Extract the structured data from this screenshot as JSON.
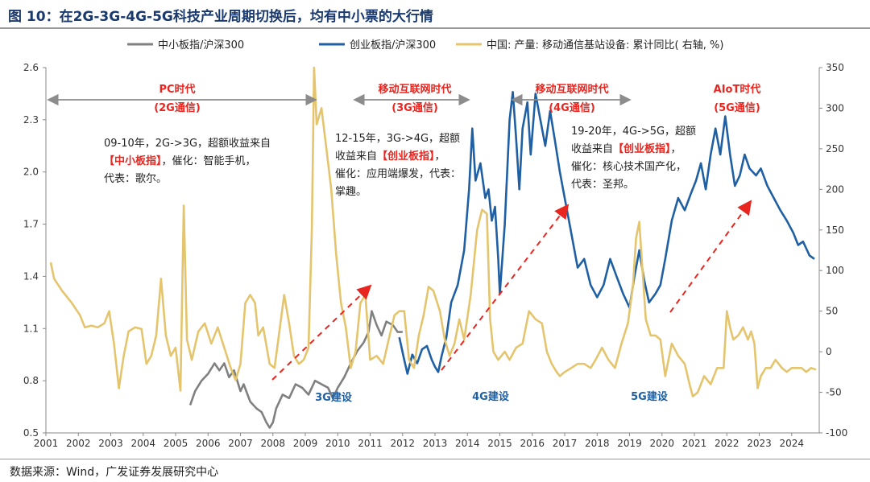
{
  "header": {
    "title": "图 10：在2G-3G-4G-5G科技产业周期切换后，均有中小票的大行情"
  },
  "footer": {
    "source": "数据来源：Wind，广发证券发展研究中心"
  },
  "colors": {
    "gray": "#808080",
    "blue": "#1f5fa3",
    "gold": "#e4c56d",
    "red": "#e8251f",
    "arrow_gray": "#8c8c8c"
  },
  "chart_data": {
    "type": "line",
    "x_range": [
      2001,
      2024.85
    ],
    "x_ticks": [
      "2001",
      "2002",
      "2003",
      "2004",
      "2005",
      "2006",
      "2007",
      "2008",
      "2009",
      "2010",
      "2011",
      "2012",
      "2013",
      "2014",
      "2015",
      "2016",
      "2017",
      "2018",
      "2019",
      "2020",
      "2021",
      "2022",
      "2023",
      "2024"
    ],
    "y_left": {
      "range": [
        0.5,
        2.6
      ],
      "ticks": [
        "0.5",
        "0.8",
        "1.1",
        "1.4",
        "1.7",
        "2.0",
        "2.3",
        "2.6"
      ]
    },
    "y_right": {
      "range": [
        -100,
        350
      ],
      "ticks": [
        "-100",
        "-50",
        "0",
        "50",
        "100",
        "150",
        "200",
        "250",
        "300",
        "350"
      ]
    },
    "legend": [
      "中小板指/沪深300",
      "创业板指/沪深300",
      "中国: 产量: 移动通信基站设备: 累计同比( 右轴, %)"
    ],
    "series": [
      {
        "name": "中小板指/沪深300",
        "axis": "left",
        "points": [
          [
            2005.45,
            0.66
          ],
          [
            2005.6,
            0.74
          ],
          [
            2005.8,
            0.8
          ],
          [
            2006.0,
            0.84
          ],
          [
            2006.2,
            0.9
          ],
          [
            2006.35,
            0.86
          ],
          [
            2006.5,
            0.9
          ],
          [
            2006.65,
            0.82
          ],
          [
            2006.8,
            0.86
          ],
          [
            2007.0,
            0.74
          ],
          [
            2007.1,
            0.78
          ],
          [
            2007.3,
            0.68
          ],
          [
            2007.5,
            0.64
          ],
          [
            2007.65,
            0.62
          ],
          [
            2007.8,
            0.56
          ],
          [
            2007.9,
            0.53
          ],
          [
            2008.0,
            0.56
          ],
          [
            2008.1,
            0.64
          ],
          [
            2008.3,
            0.72
          ],
          [
            2008.5,
            0.7
          ],
          [
            2008.7,
            0.78
          ],
          [
            2008.9,
            0.76
          ],
          [
            2009.1,
            0.72
          ],
          [
            2009.3,
            0.8
          ],
          [
            2009.5,
            0.78
          ],
          [
            2009.7,
            0.76
          ],
          [
            2009.85,
            0.7
          ],
          [
            2010.0,
            0.76
          ],
          [
            2010.2,
            0.82
          ],
          [
            2010.4,
            0.9
          ],
          [
            2010.6,
            0.97
          ],
          [
            2010.8,
            1.02
          ],
          [
            2010.95,
            1.08
          ],
          [
            2011.05,
            1.2
          ],
          [
            2011.2,
            1.12
          ],
          [
            2011.35,
            1.06
          ],
          [
            2011.5,
            1.14
          ],
          [
            2011.7,
            1.12
          ],
          [
            2011.85,
            1.08
          ],
          [
            2012.0,
            1.08
          ]
        ]
      },
      {
        "name": "创业板指/沪深300",
        "axis": "left",
        "points": [
          [
            2011.9,
            1.05
          ],
          [
            2012.05,
            0.92
          ],
          [
            2012.15,
            0.84
          ],
          [
            2012.3,
            0.95
          ],
          [
            2012.45,
            0.9
          ],
          [
            2012.6,
            0.98
          ],
          [
            2012.75,
            1.0
          ],
          [
            2012.9,
            0.92
          ],
          [
            2013.0,
            0.88
          ],
          [
            2013.1,
            0.85
          ],
          [
            2013.2,
            0.94
          ],
          [
            2013.35,
            1.05
          ],
          [
            2013.5,
            1.25
          ],
          [
            2013.7,
            1.35
          ],
          [
            2013.9,
            1.55
          ],
          [
            2014.05,
            1.9
          ],
          [
            2014.15,
            2.25
          ],
          [
            2014.25,
            1.95
          ],
          [
            2014.4,
            2.05
          ],
          [
            2014.55,
            1.85
          ],
          [
            2014.65,
            1.9
          ],
          [
            2014.75,
            1.72
          ],
          [
            2014.85,
            1.8
          ],
          [
            2014.95,
            1.5
          ],
          [
            2015.0,
            1.3
          ],
          [
            2015.15,
            1.7
          ],
          [
            2015.3,
            2.3
          ],
          [
            2015.4,
            2.46
          ],
          [
            2015.5,
            2.2
          ],
          [
            2015.6,
            1.9
          ],
          [
            2015.7,
            2.25
          ],
          [
            2015.85,
            2.4
          ],
          [
            2015.95,
            2.1
          ],
          [
            2016.1,
            2.45
          ],
          [
            2016.25,
            2.3
          ],
          [
            2016.4,
            2.15
          ],
          [
            2016.55,
            2.35
          ],
          [
            2016.7,
            2.18
          ],
          [
            2016.85,
            2.0
          ],
          [
            2017.0,
            1.85
          ],
          [
            2017.2,
            1.65
          ],
          [
            2017.4,
            1.45
          ],
          [
            2017.6,
            1.5
          ],
          [
            2017.8,
            1.35
          ],
          [
            2018.0,
            1.28
          ],
          [
            2018.2,
            1.35
          ],
          [
            2018.4,
            1.5
          ],
          [
            2018.6,
            1.4
          ],
          [
            2018.8,
            1.3
          ],
          [
            2019.0,
            1.22
          ],
          [
            2019.15,
            1.4
          ],
          [
            2019.3,
            1.55
          ],
          [
            2019.45,
            1.38
          ],
          [
            2019.6,
            1.25
          ],
          [
            2019.8,
            1.3
          ],
          [
            2019.95,
            1.35
          ],
          [
            2020.1,
            1.5
          ],
          [
            2020.3,
            1.72
          ],
          [
            2020.5,
            1.85
          ],
          [
            2020.7,
            1.78
          ],
          [
            2020.9,
            1.88
          ],
          [
            2021.05,
            1.95
          ],
          [
            2021.2,
            2.05
          ],
          [
            2021.35,
            1.9
          ],
          [
            2021.5,
            2.1
          ],
          [
            2021.65,
            2.25
          ],
          [
            2021.8,
            2.1
          ],
          [
            2021.95,
            2.32
          ],
          [
            2022.1,
            2.1
          ],
          [
            2022.25,
            1.92
          ],
          [
            2022.4,
            1.98
          ],
          [
            2022.55,
            2.1
          ],
          [
            2022.7,
            2.02
          ],
          [
            2022.9,
            1.98
          ],
          [
            2023.05,
            2.02
          ],
          [
            2023.25,
            1.92
          ],
          [
            2023.45,
            1.85
          ],
          [
            2023.65,
            1.78
          ],
          [
            2023.85,
            1.72
          ],
          [
            2024.05,
            1.65
          ],
          [
            2024.2,
            1.58
          ],
          [
            2024.35,
            1.6
          ],
          [
            2024.55,
            1.52
          ],
          [
            2024.7,
            1.5
          ]
        ]
      },
      {
        "name": "中国: 产量: 移动通信基站设备: 累计同比( 右轴, %)",
        "axis": "right",
        "points": [
          [
            2001.15,
            110
          ],
          [
            2001.25,
            90
          ],
          [
            2001.5,
            75
          ],
          [
            2001.8,
            60
          ],
          [
            2002.05,
            45
          ],
          [
            2002.2,
            30
          ],
          [
            2002.4,
            32
          ],
          [
            2002.6,
            30
          ],
          [
            2002.8,
            35
          ],
          [
            2002.95,
            50
          ],
          [
            2003.1,
            10
          ],
          [
            2003.25,
            -45
          ],
          [
            2003.4,
            -5
          ],
          [
            2003.55,
            25
          ],
          [
            2003.75,
            30
          ],
          [
            2003.95,
            28
          ],
          [
            2004.1,
            -15
          ],
          [
            2004.25,
            -5
          ],
          [
            2004.4,
            20
          ],
          [
            2004.55,
            90
          ],
          [
            2004.7,
            20
          ],
          [
            2004.85,
            -5
          ],
          [
            2005.0,
            5
          ],
          [
            2005.15,
            -48
          ],
          [
            2005.25,
            180
          ],
          [
            2005.35,
            15
          ],
          [
            2005.5,
            -10
          ],
          [
            2005.7,
            25
          ],
          [
            2005.9,
            35
          ],
          [
            2006.1,
            10
          ],
          [
            2006.3,
            30
          ],
          [
            2006.5,
            5
          ],
          [
            2006.7,
            -20
          ],
          [
            2006.85,
            -35
          ],
          [
            2007.0,
            -15
          ],
          [
            2007.15,
            60
          ],
          [
            2007.3,
            70
          ],
          [
            2007.45,
            60
          ],
          [
            2007.55,
            20
          ],
          [
            2007.7,
            30
          ],
          [
            2007.9,
            -15
          ],
          [
            2008.05,
            -20
          ],
          [
            2008.2,
            25
          ],
          [
            2008.35,
            70
          ],
          [
            2008.5,
            35
          ],
          [
            2008.65,
            -5
          ],
          [
            2008.8,
            -15
          ],
          [
            2008.95,
            -10
          ],
          [
            2009.1,
            5
          ],
          [
            2009.2,
            150
          ],
          [
            2009.27,
            350
          ],
          [
            2009.35,
            280
          ],
          [
            2009.5,
            300
          ],
          [
            2009.65,
            250
          ],
          [
            2009.8,
            200
          ],
          [
            2009.95,
            120
          ],
          [
            2010.1,
            60
          ],
          [
            2010.25,
            30
          ],
          [
            2010.4,
            -20
          ],
          [
            2010.55,
            0
          ],
          [
            2010.7,
            60
          ],
          [
            2010.85,
            70
          ],
          [
            2011.0,
            -10
          ],
          [
            2011.2,
            -5
          ],
          [
            2011.4,
            -15
          ],
          [
            2011.6,
            20
          ],
          [
            2011.75,
            45
          ],
          [
            2011.9,
            50
          ],
          [
            2012.05,
            50
          ],
          [
            2012.2,
            -10
          ],
          [
            2012.35,
            -20
          ],
          [
            2012.5,
            20
          ],
          [
            2012.65,
            45
          ],
          [
            2012.8,
            80
          ],
          [
            2012.95,
            75
          ],
          [
            2013.15,
            50
          ],
          [
            2013.3,
            15
          ],
          [
            2013.45,
            -5
          ],
          [
            2013.6,
            10
          ],
          [
            2013.75,
            40
          ],
          [
            2013.9,
            15
          ],
          [
            2014.1,
            70
          ],
          [
            2014.3,
            150
          ],
          [
            2014.45,
            175
          ],
          [
            2014.6,
            170
          ],
          [
            2014.7,
            40
          ],
          [
            2014.8,
            0
          ],
          [
            2014.95,
            -10
          ],
          [
            2015.15,
            0
          ],
          [
            2015.3,
            -10
          ],
          [
            2015.5,
            5
          ],
          [
            2015.7,
            10
          ],
          [
            2015.9,
            50
          ],
          [
            2016.1,
            40
          ],
          [
            2016.3,
            35
          ],
          [
            2016.45,
            0
          ],
          [
            2016.6,
            -15
          ],
          [
            2016.75,
            -25
          ],
          [
            2016.85,
            -30
          ],
          [
            2017.0,
            -25
          ],
          [
            2017.2,
            -20
          ],
          [
            2017.4,
            -15
          ],
          [
            2017.6,
            -15
          ],
          [
            2017.8,
            -20
          ],
          [
            2017.95,
            -10
          ],
          [
            2018.15,
            5
          ],
          [
            2018.35,
            -10
          ],
          [
            2018.55,
            -20
          ],
          [
            2018.75,
            10
          ],
          [
            2018.95,
            35
          ],
          [
            2019.1,
            80
          ],
          [
            2019.2,
            140
          ],
          [
            2019.3,
            160
          ],
          [
            2019.4,
            100
          ],
          [
            2019.5,
            40
          ],
          [
            2019.65,
            20
          ],
          [
            2019.8,
            20
          ],
          [
            2019.95,
            15
          ],
          [
            2020.1,
            -30
          ],
          [
            2020.3,
            10
          ],
          [
            2020.5,
            -5
          ],
          [
            2020.7,
            -15
          ],
          [
            2020.85,
            -40
          ],
          [
            2020.95,
            -55
          ],
          [
            2021.1,
            -50
          ],
          [
            2021.3,
            -30
          ],
          [
            2021.5,
            -40
          ],
          [
            2021.7,
            -20
          ],
          [
            2021.9,
            -20
          ],
          [
            2022.0,
            50
          ],
          [
            2022.1,
            30
          ],
          [
            2022.2,
            15
          ],
          [
            2022.35,
            20
          ],
          [
            2022.5,
            30
          ],
          [
            2022.65,
            15
          ],
          [
            2022.75,
            25
          ],
          [
            2022.85,
            10
          ],
          [
            2022.95,
            -45
          ],
          [
            2023.05,
            -30
          ],
          [
            2023.2,
            -20
          ],
          [
            2023.35,
            -20
          ],
          [
            2023.5,
            -10
          ],
          [
            2023.7,
            -20
          ],
          [
            2023.85,
            -25
          ],
          [
            2024.0,
            -20
          ],
          [
            2024.15,
            -20
          ],
          [
            2024.3,
            -20
          ],
          [
            2024.45,
            -25
          ],
          [
            2024.6,
            -20
          ],
          [
            2024.75,
            -22
          ]
        ]
      }
    ],
    "period_labels": [
      {
        "name": "PC时代",
        "sub": "(2G通信)"
      },
      {
        "name": "移动互联网时代",
        "sub": "(3G通信)"
      },
      {
        "name": "移动互联网时代",
        "sub": "(4G通信)"
      },
      {
        "name": "AIoT时代",
        "sub": "(5G通信)"
      }
    ],
    "annotations": [
      {
        "lines": [
          "09-10年，2G->3G，超额收益来自",
          "【中小板指】，催化：智能手机，",
          "代表：歌尔。"
        ],
        "highlight": "【中小板指】"
      },
      {
        "lines": [
          "12-15年，3G->4G，超额",
          "收益来自【创业板指】，",
          "催化：应用端爆发，代表：",
          "掌趣。"
        ],
        "highlight": "【创业板指】"
      },
      {
        "lines": [
          "19-20年，4G->5G，超额",
          "收益来自【创业板指】，",
          "催化：核心技术国产化，",
          "代表：圣邦。"
        ],
        "highlight": "【创业板指】"
      }
    ],
    "build_labels": [
      "3G建设",
      "4G建设",
      "5G建设"
    ]
  }
}
